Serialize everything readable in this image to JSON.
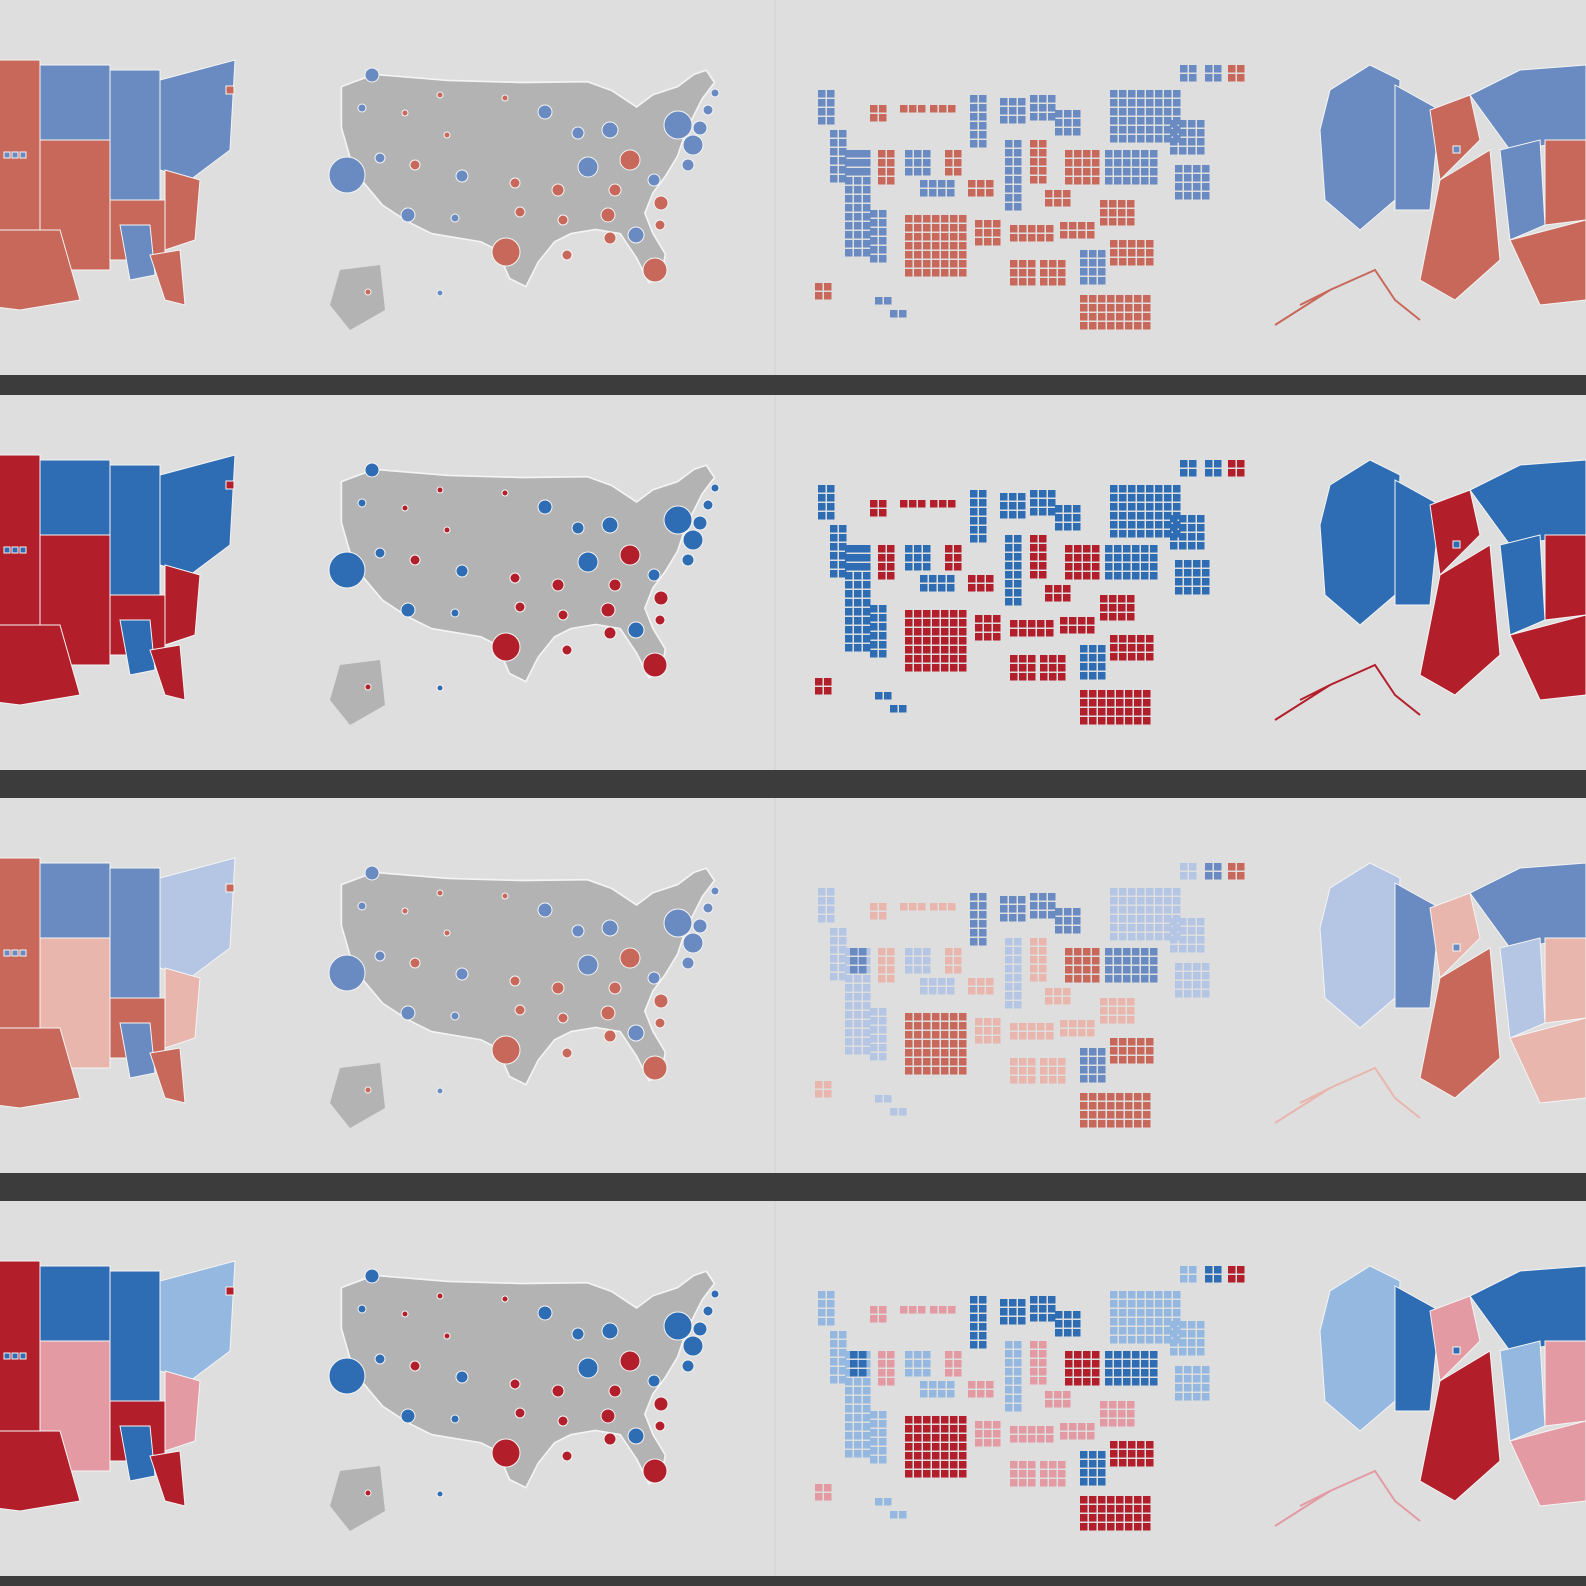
{
  "palettes": {
    "muted": {
      "blue": "#6a8bc2",
      "red": "#c8685a",
      "light_blue": "#6a8bc2",
      "light_red": "#c8685a"
    },
    "bold": {
      "blue": "#2e6db4",
      "red": "#b31e2b",
      "light_blue": "#2e6db4",
      "light_red": "#b31e2b"
    },
    "muted_margin": {
      "blue": "#6a8bc2",
      "red": "#c8685a",
      "light_blue": "#b4c6e3",
      "light_red": "#e8b6ad"
    },
    "bold_margin": {
      "blue": "#2e6db4",
      "red": "#b31e2b",
      "light_blue": "#94b8df",
      "light_red": "#e39aa3"
    }
  },
  "background": {
    "panel": "#dedede",
    "separator": "#3c3c3c",
    "land_gray": "#b3b3b3",
    "border": "#f4f4f4"
  },
  "rows": [
    {
      "palette": "muted"
    },
    {
      "palette": "bold"
    },
    {
      "palette": "muted_margin"
    },
    {
      "palette": "bold_margin"
    }
  ],
  "panels": [
    {
      "type": "choropleth"
    },
    {
      "type": "proportional-symbol"
    },
    {
      "type": "tile-cartogram"
    },
    {
      "type": "area-cartogram"
    }
  ]
}
